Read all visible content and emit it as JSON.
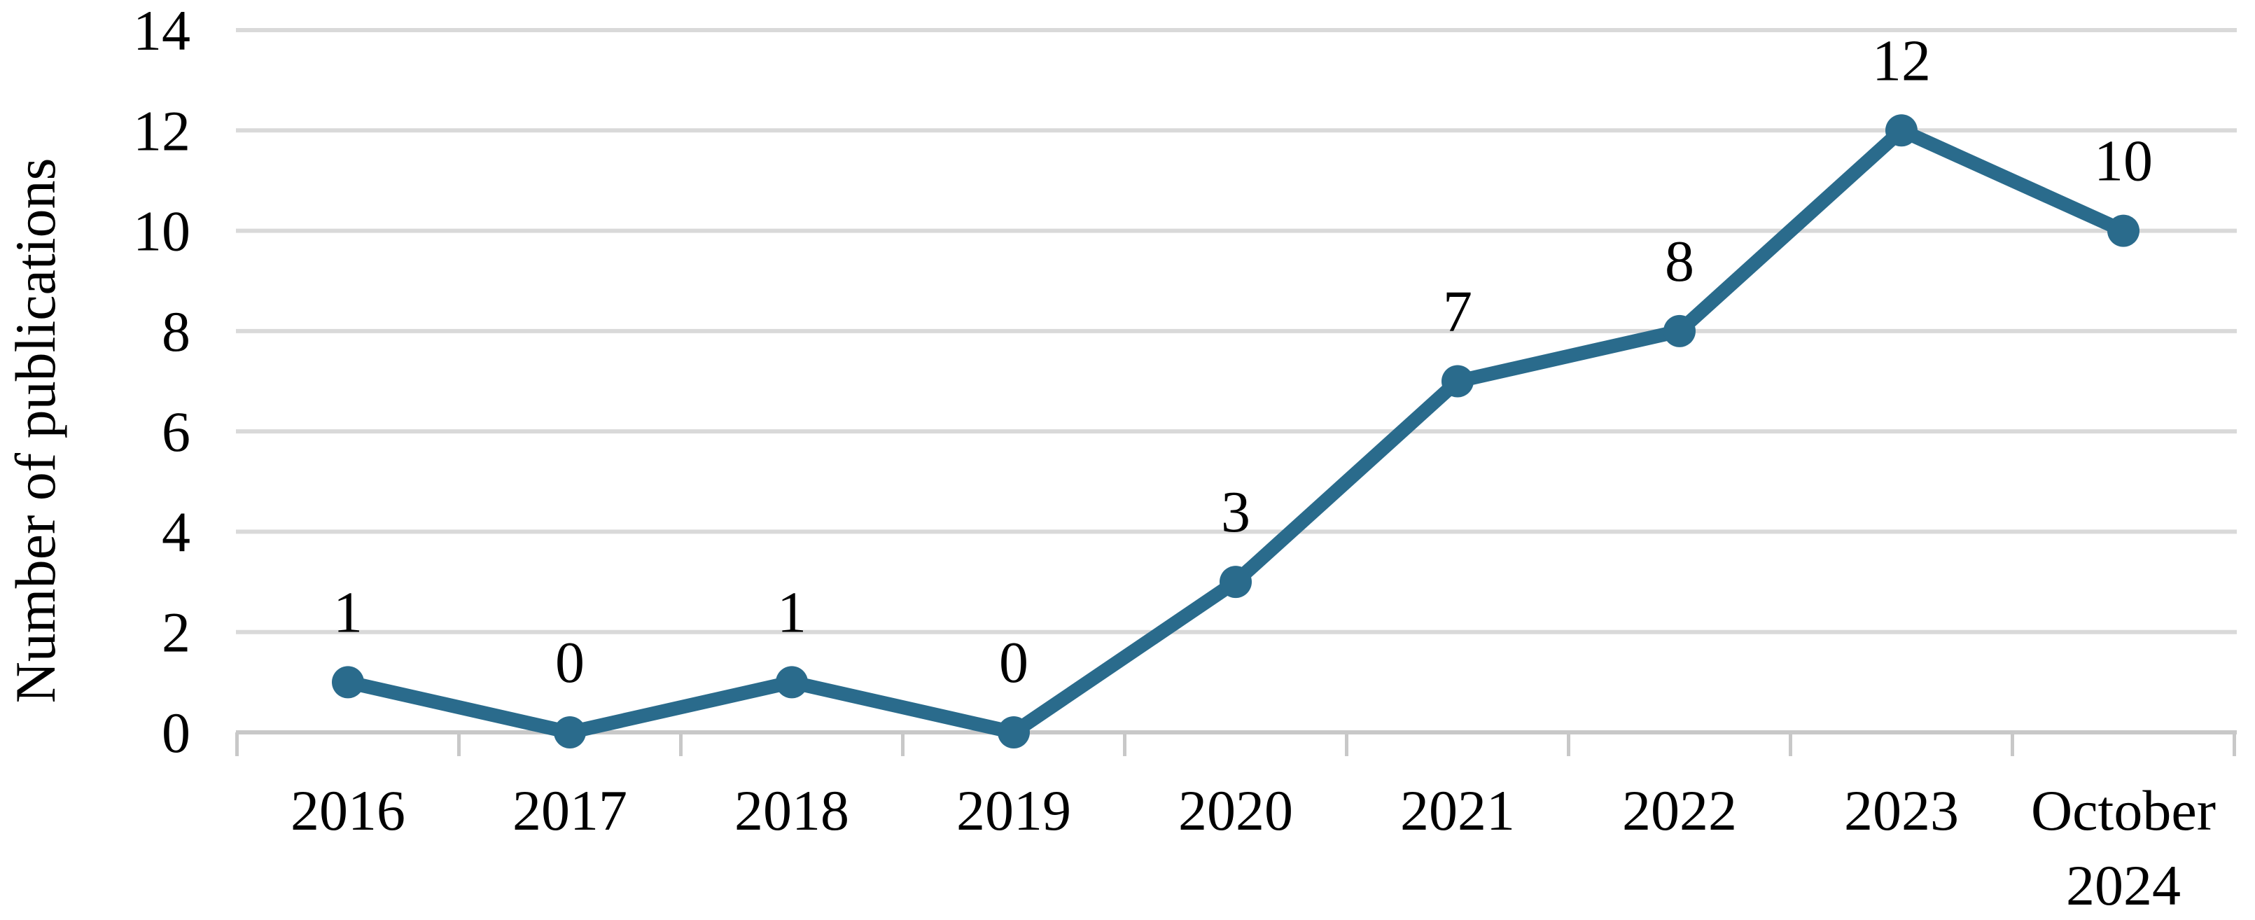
{
  "chart_data": {
    "type": "line",
    "title": "",
    "xlabel": "",
    "ylabel": "Number of publications",
    "categories": [
      "2016",
      "2017",
      "2018",
      "2019",
      "2020",
      "2021",
      "2022",
      "2023",
      "October 2024"
    ],
    "x_tick_lines": [
      [
        "2016"
      ],
      [
        "2017"
      ],
      [
        "2018"
      ],
      [
        "2019"
      ],
      [
        "2020"
      ],
      [
        "2021"
      ],
      [
        "2022"
      ],
      [
        "2023"
      ],
      [
        "October",
        "2024"
      ]
    ],
    "values": [
      1,
      0,
      1,
      0,
      3,
      7,
      8,
      12,
      10
    ],
    "data_labels": [
      "1",
      "0",
      "1",
      "0",
      "3",
      "7",
      "8",
      "12",
      "10"
    ],
    "yticks": [
      0,
      2,
      4,
      6,
      8,
      10,
      12,
      14
    ],
    "ylim": [
      0,
      14
    ],
    "grid": "horizontal",
    "legend": "none",
    "marker": "circle",
    "colors": {
      "line": "#2A6B8C",
      "grid": "#D9D9D9",
      "axis": "#C8C8C8",
      "text": "#000000",
      "background": "#FFFFFF"
    }
  }
}
